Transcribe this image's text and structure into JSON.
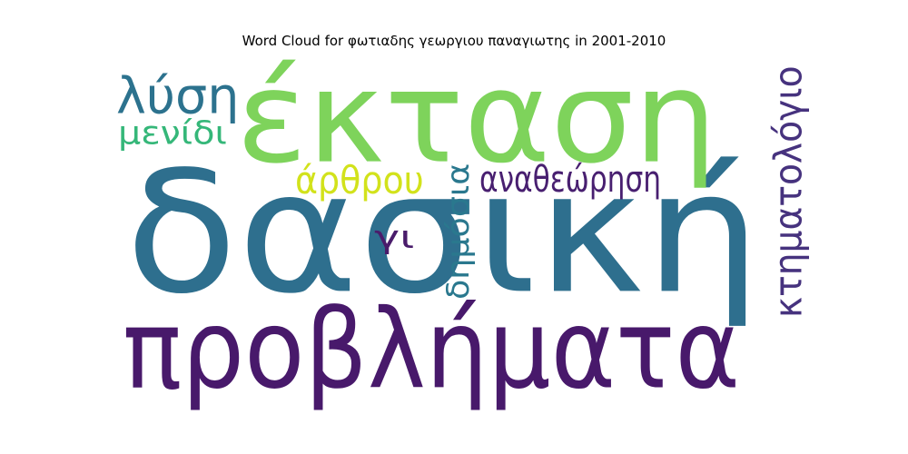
{
  "title": "Word Cloud for φωτιαδης γεωργιου παναγιωτης in 2001-2010",
  "words": [
    {
      "text": "δασική",
      "color": "#2e6f8e",
      "orientation": "horizontal"
    },
    {
      "text": "έκταση",
      "color": "#7ed35b",
      "orientation": "horizontal"
    },
    {
      "text": "προβλήματα",
      "color": "#48196b",
      "orientation": "horizontal"
    },
    {
      "text": "λύση",
      "color": "#2c728e",
      "orientation": "horizontal"
    },
    {
      "text": "μενίδι",
      "color": "#35b779",
      "orientation": "horizontal"
    },
    {
      "text": "άρθρου",
      "color": "#d2e21b",
      "orientation": "horizontal"
    },
    {
      "text": "αναθεώρηση",
      "color": "#481f70",
      "orientation": "horizontal"
    },
    {
      "text": "γι",
      "color": "#4a1c6b",
      "orientation": "horizontal"
    },
    {
      "text": "δημόσια",
      "color": "#2a788e",
      "orientation": "vertical"
    },
    {
      "text": "κτηματολόγιο",
      "color": "#46327e",
      "orientation": "vertical"
    }
  ]
}
